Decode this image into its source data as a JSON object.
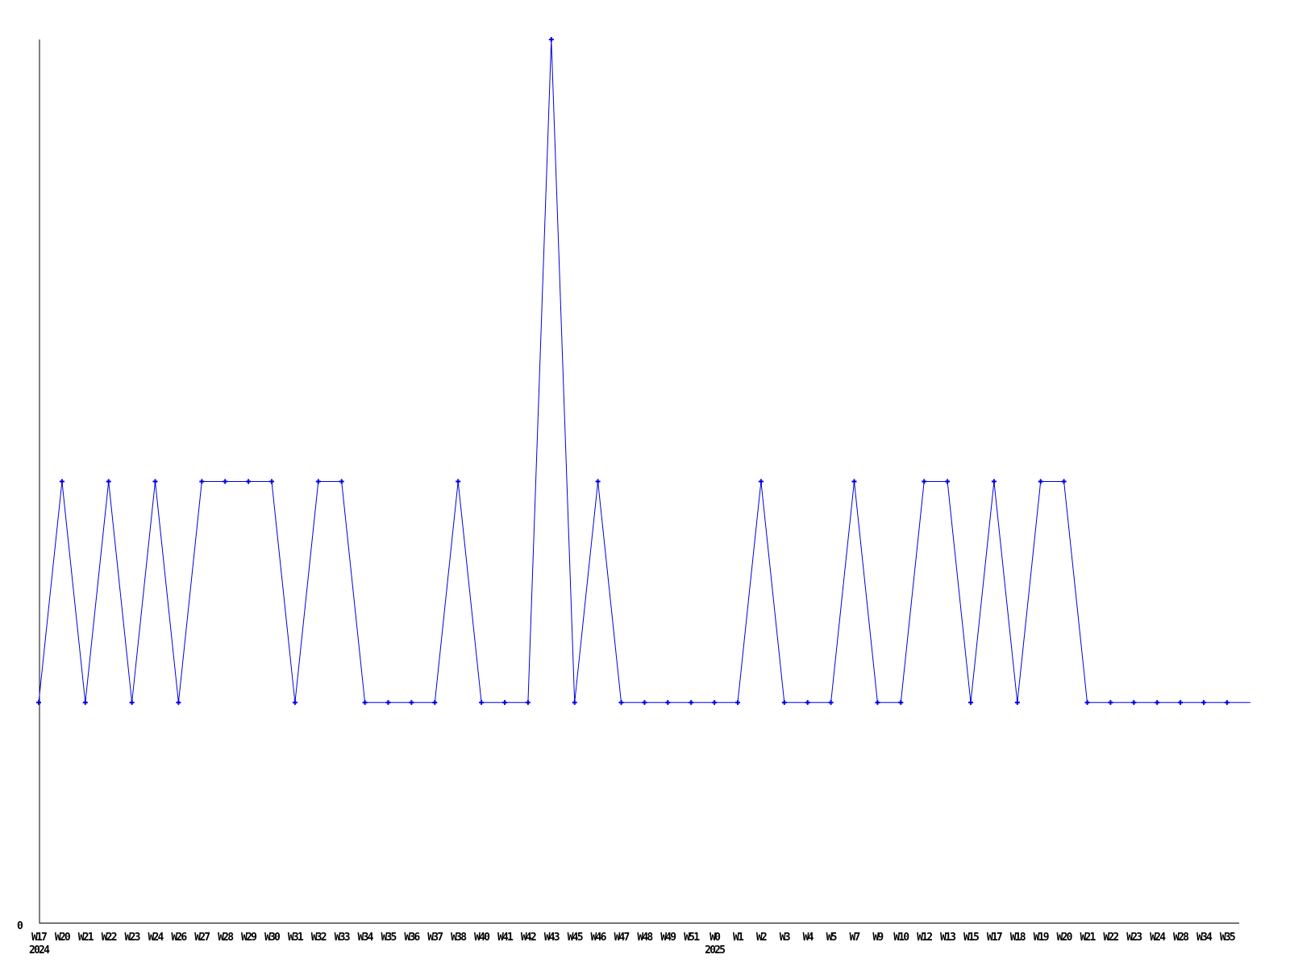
{
  "chart_data": {
    "type": "line",
    "title": "",
    "xlabel": "",
    "ylabel": "",
    "categories": [
      "W17",
      "W20",
      "W21",
      "W22",
      "W23",
      "W24",
      "W26",
      "W27",
      "W28",
      "W29",
      "W30",
      "W31",
      "W32",
      "W33",
      "W34",
      "W35",
      "W36",
      "W37",
      "W38",
      "W40",
      "W41",
      "W42",
      "W43",
      "W45",
      "W46",
      "W47",
      "W48",
      "W49",
      "W51",
      "W0",
      "W1",
      "W2",
      "W3",
      "W4",
      "W5",
      "W7",
      "W9",
      "W10",
      "W12",
      "W13",
      "W15",
      "W17",
      "W18",
      "W19",
      "W20",
      "W21",
      "W22",
      "W23",
      "W24",
      "W28",
      "W34",
      "W35"
    ],
    "values": [
      1,
      2,
      1,
      2,
      1,
      2,
      1,
      2,
      2,
      2,
      2,
      1,
      2,
      2,
      1,
      1,
      1,
      1,
      2,
      1,
      1,
      1,
      4,
      1,
      2,
      1,
      1,
      1,
      1,
      1,
      1,
      2,
      1,
      1,
      1,
      2,
      1,
      1,
      2,
      2,
      1,
      2,
      1,
      2,
      2,
      1,
      1,
      1,
      1,
      1,
      1,
      1
    ],
    "tail_value": 1,
    "year_markers": [
      {
        "index": 0,
        "label": "2024"
      },
      {
        "index": 29,
        "label": "2025"
      }
    ],
    "y_tick_labels": [
      "0"
    ],
    "ylim": [
      0,
      4
    ],
    "grid": false,
    "legend": "none",
    "marker": "plus",
    "line_color": "#0000dd",
    "axis_color": "#000000",
    "background_color": "#ffffff"
  }
}
